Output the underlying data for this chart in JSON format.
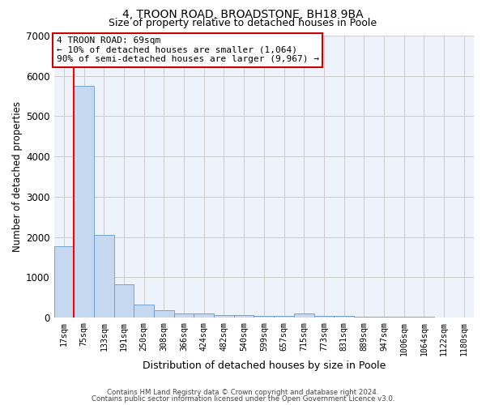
{
  "title1": "4, TROON ROAD, BROADSTONE, BH18 9BA",
  "title2": "Size of property relative to detached houses in Poole",
  "xlabel": "Distribution of detached houses by size in Poole",
  "ylabel": "Number of detached properties",
  "categories": [
    "17sqm",
    "75sqm",
    "133sqm",
    "191sqm",
    "250sqm",
    "308sqm",
    "366sqm",
    "424sqm",
    "482sqm",
    "540sqm",
    "599sqm",
    "657sqm",
    "715sqm",
    "773sqm",
    "831sqm",
    "889sqm",
    "947sqm",
    "1006sqm",
    "1064sqm",
    "1122sqm",
    "1180sqm"
  ],
  "values": [
    1780,
    5750,
    2060,
    830,
    325,
    185,
    100,
    95,
    65,
    55,
    50,
    45,
    100,
    40,
    35,
    30,
    25,
    20,
    15,
    10,
    5
  ],
  "bar_color": "#c5d8f0",
  "bar_edge_color": "#6699cc",
  "grid_color": "#cccccc",
  "bg_color": "#eef2fb",
  "annotation_text": "4 TROON ROAD: 69sqm\n← 10% of detached houses are smaller (1,064)\n90% of semi-detached houses are larger (9,967) →",
  "annotation_box_color": "#ffffff",
  "annotation_border_color": "#cc0000",
  "red_line_x": 0.5,
  "ylim": [
    0,
    7000
  ],
  "yticks": [
    0,
    1000,
    2000,
    3000,
    4000,
    5000,
    6000,
    7000
  ],
  "footnote1": "Contains HM Land Registry data © Crown copyright and database right 2024.",
  "footnote2": "Contains public sector information licensed under the Open Government Licence v3.0.",
  "title1_fontsize": 10,
  "title2_fontsize": 9,
  "ylabel_fontsize": 8.5,
  "xlabel_fontsize": 9
}
